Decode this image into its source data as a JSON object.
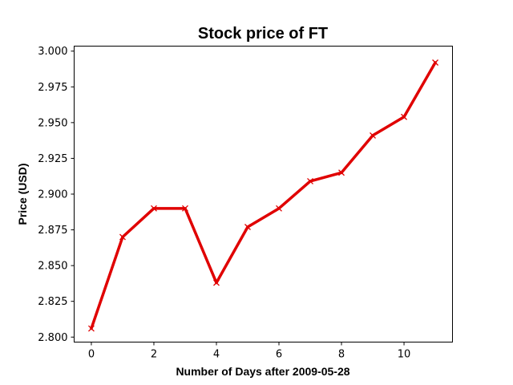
{
  "chart_data": {
    "type": "line",
    "title": "Stock price of FT",
    "xlabel": "Number of Days after 2009-05-28",
    "ylabel": "Price (USD)",
    "xlim": [
      -0.55,
      11.55
    ],
    "ylim": [
      2.7965,
      3.0035
    ],
    "xticks": [
      0,
      2,
      4,
      6,
      8,
      10
    ],
    "yticks": [
      2.8,
      2.825,
      2.85,
      2.875,
      2.9,
      2.925,
      2.95,
      2.975,
      3.0
    ],
    "x": [
      0,
      1,
      2,
      3,
      4,
      5,
      6,
      7,
      8,
      9,
      10,
      11
    ],
    "series": [
      {
        "values": [
          2.806,
          2.87,
          2.89,
          2.89,
          2.838,
          2.877,
          2.89,
          2.909,
          2.915,
          2.941,
          2.954,
          2.992
        ],
        "color": "#e00000",
        "marker": "x"
      }
    ],
    "grid": false,
    "legend": false
  }
}
